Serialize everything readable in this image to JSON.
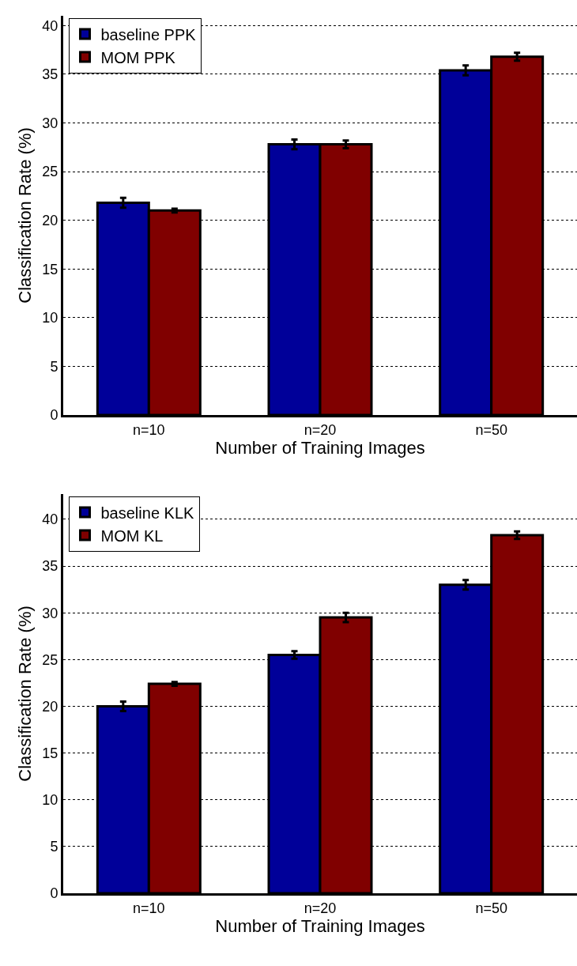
{
  "chart_data": [
    {
      "type": "bar",
      "categories": [
        "n=10",
        "n=20",
        "n=50"
      ],
      "xlabel": "Number of Training Images",
      "ylabel": "Classification Rate (%)",
      "series": [
        {
          "name": "baseline PPK",
          "color": "#000099",
          "values": [
            21.8,
            27.8,
            35.4
          ],
          "errors": [
            0.5,
            0.5,
            0.5
          ]
        },
        {
          "name": "MOM PPK",
          "color": "#800000",
          "values": [
            21.0,
            27.8,
            36.8
          ],
          "errors": [
            0.2,
            0.4,
            0.4
          ]
        }
      ],
      "ylim": [
        0,
        41
      ],
      "yticks": [
        0,
        5,
        10,
        15,
        20,
        25,
        30,
        35,
        40
      ],
      "grid": "y",
      "legend": "top left"
    },
    {
      "type": "bar",
      "categories": [
        "n=10",
        "n=20",
        "n=50"
      ],
      "xlabel": "Number of Training Images",
      "ylabel": "Classification Rate (%)",
      "series": [
        {
          "name": "baseline KLK",
          "color": "#000099",
          "values": [
            20.0,
            25.5,
            33.0
          ],
          "errors": [
            0.5,
            0.4,
            0.5
          ]
        },
        {
          "name": "MOM KL",
          "color": "#800000",
          "values": [
            22.4,
            29.5,
            38.3
          ],
          "errors": [
            0.2,
            0.5,
            0.4
          ]
        }
      ],
      "ylim": [
        0,
        42.7
      ],
      "yticks": [
        0,
        5,
        10,
        15,
        20,
        25,
        30,
        35,
        40
      ],
      "grid": "y",
      "legend": "top left"
    }
  ]
}
